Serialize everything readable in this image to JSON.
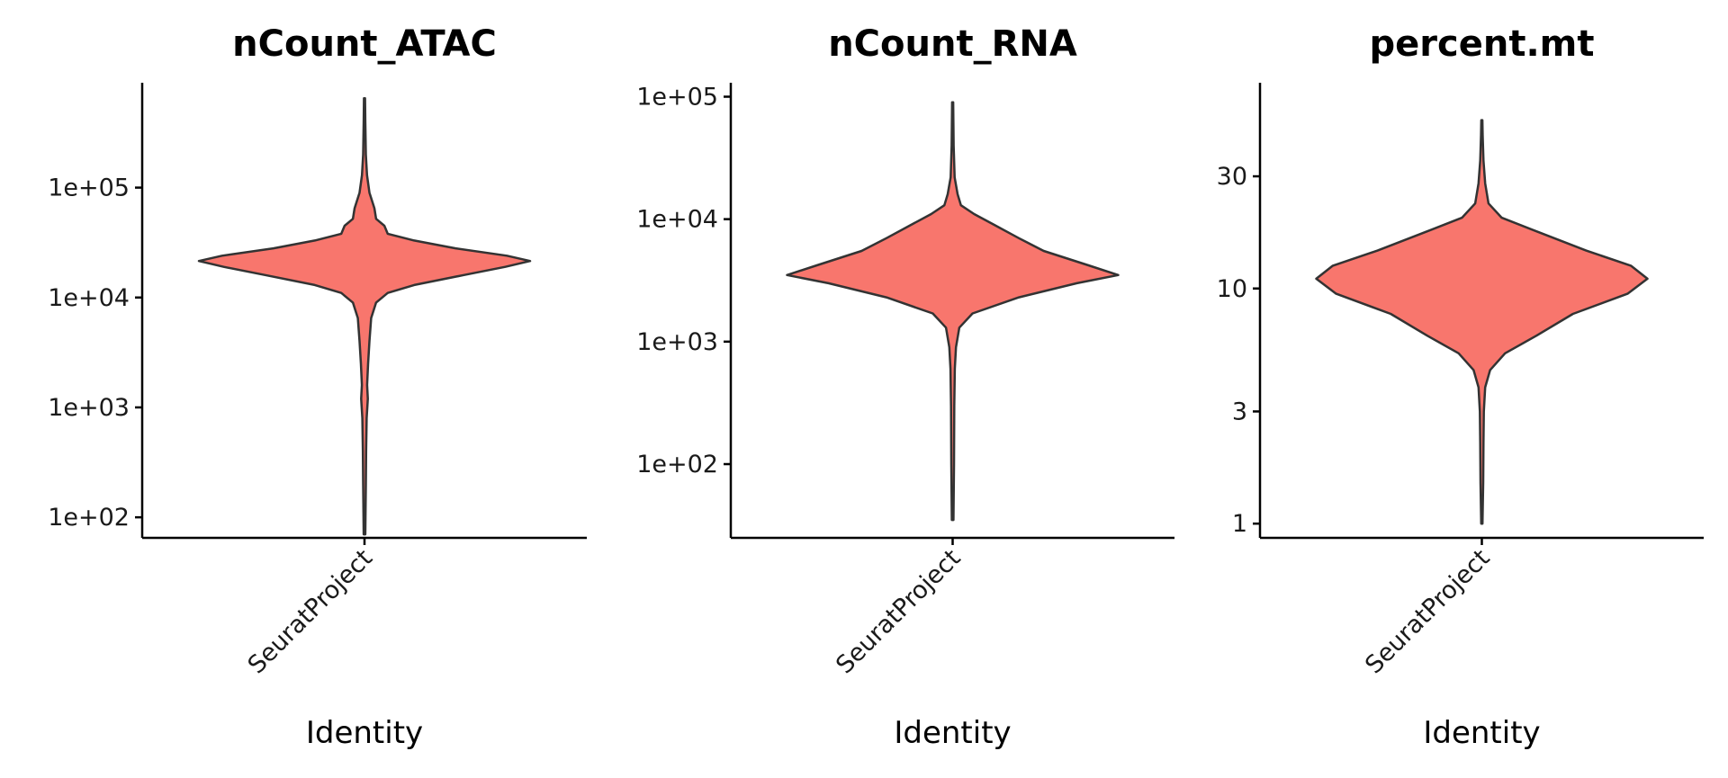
{
  "chart_data": [
    {
      "type": "violin",
      "title": "nCount_ATAC",
      "xlabel": "Identity",
      "ylabel": "",
      "categories": [
        "SeuratProject"
      ],
      "y_scale": "log10",
      "ylim": [
        65,
        900000
      ],
      "yticks": [
        100,
        1000,
        10000,
        100000
      ],
      "yticklabels": [
        "1e+02",
        "1e+03",
        "1e+04",
        "1e+05"
      ],
      "fill_color": "#F8766D",
      "min": 70,
      "max": 650000,
      "density_profile": [
        [
          70,
          0.005
        ],
        [
          200,
          0.008
        ],
        [
          400,
          0.01
        ],
        [
          800,
          0.013
        ],
        [
          1200,
          0.02
        ],
        [
          1600,
          0.016
        ],
        [
          2500,
          0.022
        ],
        [
          4000,
          0.03
        ],
        [
          6500,
          0.04
        ],
        [
          9000,
          0.07
        ],
        [
          11000,
          0.14
        ],
        [
          13000,
          0.3
        ],
        [
          16000,
          0.6
        ],
        [
          19000,
          0.85
        ],
        [
          21500,
          1.0
        ],
        [
          24000,
          0.86
        ],
        [
          28000,
          0.55
        ],
        [
          33000,
          0.3
        ],
        [
          38000,
          0.14
        ],
        [
          45000,
          0.12
        ],
        [
          52000,
          0.07
        ],
        [
          65000,
          0.06
        ],
        [
          90000,
          0.03
        ],
        [
          130000,
          0.015
        ],
        [
          200000,
          0.008
        ],
        [
          400000,
          0.005
        ],
        [
          650000,
          0.003
        ]
      ]
    },
    {
      "type": "violin",
      "title": "nCount_RNA",
      "xlabel": "Identity",
      "ylabel": "",
      "categories": [
        "SeuratProject"
      ],
      "y_scale": "log10",
      "ylim": [
        25,
        130000
      ],
      "yticks": [
        100,
        1000,
        10000,
        100000
      ],
      "yticklabels": [
        "1e+02",
        "1e+03",
        "1e+04",
        "1e+05"
      ],
      "fill_color": "#F8766D",
      "min": 35,
      "max": 90000,
      "density_profile": [
        [
          35,
          0.005
        ],
        [
          100,
          0.008
        ],
        [
          300,
          0.01
        ],
        [
          600,
          0.013
        ],
        [
          900,
          0.02
        ],
        [
          1300,
          0.04
        ],
        [
          1700,
          0.12
        ],
        [
          2300,
          0.4
        ],
        [
          3000,
          0.75
        ],
        [
          3500,
          1.0
        ],
        [
          4200,
          0.82
        ],
        [
          5500,
          0.55
        ],
        [
          7000,
          0.4
        ],
        [
          9000,
          0.25
        ],
        [
          11000,
          0.13
        ],
        [
          13000,
          0.05
        ],
        [
          16000,
          0.03
        ],
        [
          22000,
          0.012
        ],
        [
          40000,
          0.006
        ],
        [
          90000,
          0.003
        ]
      ]
    },
    {
      "type": "violin",
      "title": "percent.mt",
      "xlabel": "Identity",
      "ylabel": "",
      "categories": [
        "SeuratProject"
      ],
      "y_scale": "log10",
      "ylim": [
        0.87,
        75
      ],
      "yticks": [
        1,
        3,
        10,
        30
      ],
      "yticklabels": [
        "1",
        "3",
        "10",
        "30"
      ],
      "fill_color": "#F8766D",
      "min": 1,
      "max": 52,
      "density_profile": [
        [
          1,
          0.004
        ],
        [
          1.5,
          0.008
        ],
        [
          2.2,
          0.01
        ],
        [
          3,
          0.012
        ],
        [
          3.8,
          0.02
        ],
        [
          4.5,
          0.05
        ],
        [
          5.3,
          0.14
        ],
        [
          6.3,
          0.33
        ],
        [
          7.8,
          0.55
        ],
        [
          9.5,
          0.88
        ],
        [
          11,
          1.0
        ],
        [
          12.5,
          0.9
        ],
        [
          14.5,
          0.63
        ],
        [
          17.5,
          0.33
        ],
        [
          20,
          0.12
        ],
        [
          23,
          0.04
        ],
        [
          28,
          0.02
        ],
        [
          35,
          0.01
        ],
        [
          45,
          0.005
        ],
        [
          52,
          0.003
        ]
      ]
    }
  ]
}
